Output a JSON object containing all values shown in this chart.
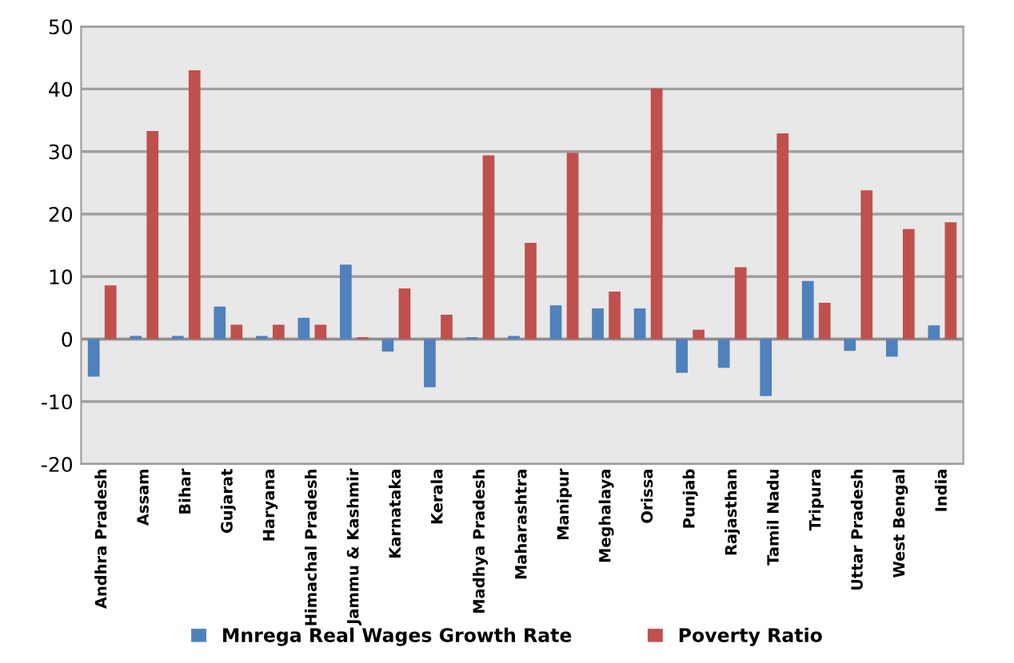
{
  "chart_data": {
    "type": "bar",
    "categories": [
      "Andhra Pradesh",
      "Assam",
      "Bihar",
      "Gujarat",
      "Haryana",
      "Himachal Pradesh",
      "Jammu & Kashmir",
      "Karnataka",
      "Kerala",
      "Madhya Pradesh",
      "Maharashtra",
      "Manipur",
      "Meghalaya",
      "Orissa",
      "Punjab",
      "Rajasthan",
      "Tamil Nadu",
      "Tripura",
      "Uttar Pradesh",
      "West Bengal",
      "India"
    ],
    "series": [
      {
        "name": "Mnrega Real Wages Growth Rate",
        "color": "#4f81bd",
        "values": [
          -6,
          0.5,
          0.5,
          5.2,
          0.5,
          3.4,
          11.9,
          -2,
          -7.7,
          0.3,
          0.5,
          5.4,
          4.9,
          4.9,
          -5.4,
          -4.6,
          -9.1,
          9.3,
          -1.9,
          -2.8,
          2.2
        ]
      },
      {
        "name": "Poverty Ratio",
        "color": "#c0504d",
        "values": [
          8.6,
          33.3,
          43,
          2.3,
          2.3,
          2.3,
          0.3,
          8.1,
          3.9,
          29.4,
          15.4,
          29.8,
          7.6,
          40.1,
          1.5,
          11.5,
          32.9,
          5.8,
          23.8,
          17.6,
          18.7
        ]
      }
    ],
    "ylim": [
      -20,
      50
    ],
    "yticks": [
      -20,
      -10,
      0,
      10,
      20,
      30,
      40,
      50
    ],
    "grid": "y",
    "legend": "bottom"
  }
}
